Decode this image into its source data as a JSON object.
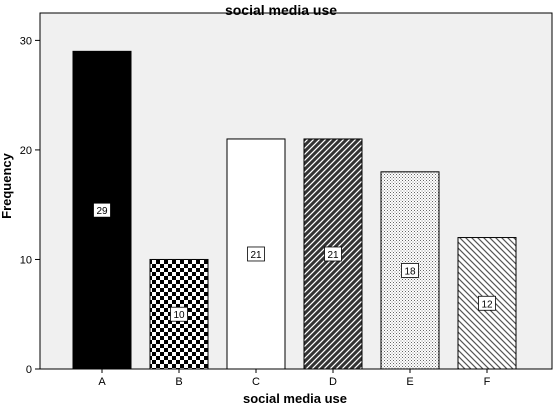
{
  "chart_data": {
    "type": "bar",
    "title": "social media use",
    "xlabel": "social media use",
    "ylabel": "Frequency",
    "categories": [
      "A",
      "B",
      "C",
      "D",
      "E",
      "F"
    ],
    "values": [
      29,
      10,
      21,
      21,
      18,
      12
    ],
    "data_labels": [
      "29",
      "10",
      "21",
      "21",
      "18",
      "12"
    ],
    "yticks": [
      "0",
      "10",
      "20",
      "30"
    ],
    "ylim": [
      0,
      32.5
    ],
    "grid": false,
    "legend": "none",
    "colors": {
      "plot_background": "#f0f0f0",
      "bar_outline": "#000000",
      "axis": "#000000"
    },
    "bar_fills": [
      "solid-black",
      "checkerboard",
      "white",
      "dense-diagonal",
      "fine-dots",
      "light-diagonal"
    ]
  }
}
